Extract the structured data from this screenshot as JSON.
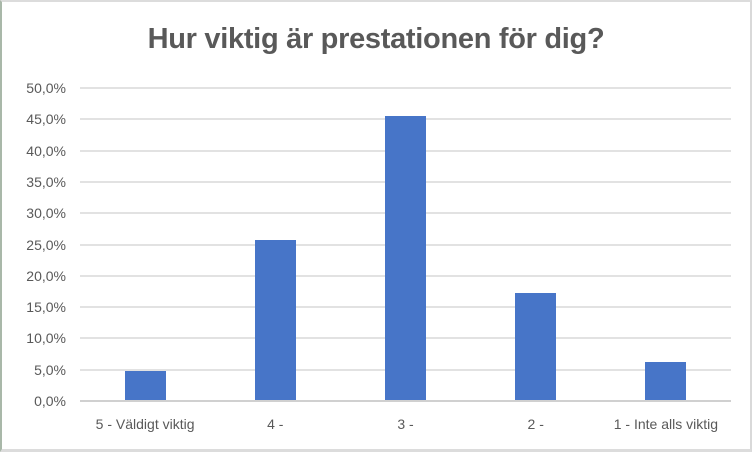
{
  "chart_data": {
    "type": "bar",
    "title": "Hur viktig är prestationen för dig?",
    "categories": [
      "5 - Väldigt viktig",
      "4 -",
      "3 -",
      "2 -",
      "1 - Inte alls viktig"
    ],
    "values": [
      4.8,
      25.8,
      45.5,
      17.3,
      6.2
    ],
    "unit": "%",
    "xlabel": "",
    "ylabel": "",
    "ylim": [
      0,
      50
    ],
    "ytick_step": 5,
    "ytick_labels": [
      "0,0%",
      "5,0%",
      "10,0%",
      "15,0%",
      "20,0%",
      "25,0%",
      "30,0%",
      "35,0%",
      "40,0%",
      "45,0%",
      "50,0%"
    ],
    "grid": true,
    "legend": "none",
    "colors": {
      "bar": "#4775c8",
      "gridline": "#e2e2e2",
      "axis_line": "#d0d0d0",
      "text": "#595959",
      "frame_left_border": "#a9b8a9",
      "frame_border": "#dcdcdc"
    }
  }
}
